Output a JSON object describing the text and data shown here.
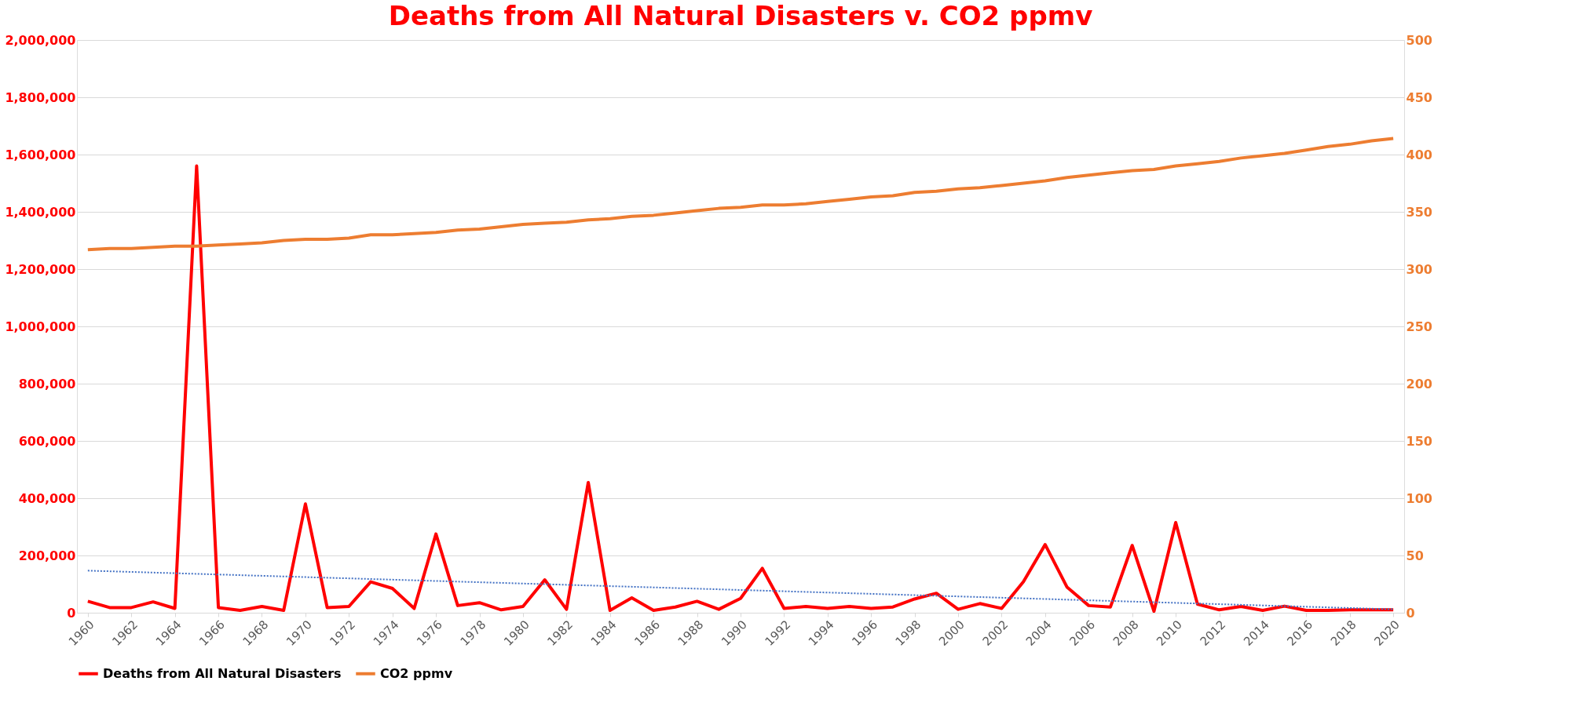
{
  "chart_data": {
    "type": "line",
    "title": "Deaths from All Natural Disasters v. CO2 ppmv",
    "x": [
      1960,
      1961,
      1962,
      1963,
      1964,
      1965,
      1966,
      1967,
      1968,
      1969,
      1970,
      1971,
      1972,
      1973,
      1974,
      1975,
      1976,
      1977,
      1978,
      1979,
      1980,
      1981,
      1982,
      1983,
      1984,
      1985,
      1986,
      1987,
      1988,
      1989,
      1990,
      1991,
      1992,
      1993,
      1994,
      1995,
      1996,
      1997,
      1998,
      1999,
      2000,
      2001,
      2002,
      2003,
      2004,
      2005,
      2006,
      2007,
      2008,
      2009,
      2010,
      2011,
      2012,
      2013,
      2014,
      2015,
      2016,
      2017,
      2018,
      2019,
      2020
    ],
    "series": [
      {
        "name": "Deaths from All Natural Disasters",
        "color": "#ff0000",
        "values": [
          40000,
          18000,
          18000,
          38000,
          15000,
          1560000,
          18000,
          8000,
          22000,
          8000,
          380000,
          18000,
          22000,
          108000,
          85000,
          15000,
          275000,
          25000,
          35000,
          10000,
          22000,
          115000,
          12000,
          455000,
          8000,
          52000,
          8000,
          20000,
          40000,
          12000,
          50000,
          155000,
          15000,
          22000,
          15000,
          22000,
          15000,
          20000,
          48000,
          68000,
          12000,
          32000,
          15000,
          108000,
          238000,
          90000,
          25000,
          20000,
          235000,
          5000,
          315000,
          30000,
          10000,
          22000,
          8000,
          23000,
          8000,
          8000,
          10000,
          10000,
          10000
        ]
      },
      {
        "name": "CO2 ppmv",
        "color": "#ed7d31",
        "axis": "y2",
        "values": [
          317,
          318,
          318,
          319,
          320,
          320,
          321,
          322,
          323,
          325,
          326,
          326,
          327,
          330,
          330,
          331,
          332,
          334,
          335,
          337,
          339,
          340,
          341,
          343,
          344,
          346,
          347,
          349,
          351,
          353,
          354,
          356,
          356,
          357,
          359,
          361,
          363,
          364,
          367,
          368,
          370,
          371,
          373,
          375,
          377,
          380,
          382,
          384,
          386,
          387,
          390,
          392,
          394,
          397,
          399,
          401,
          404,
          407,
          409,
          412,
          414
        ]
      },
      {
        "type": "line",
        "color": "#4472c4",
        "line_style": "dotted",
        "x": [
          1960,
          2020
        ],
        "values": [
          147000,
          12000
        ]
      }
    ],
    "xlim": [
      1959.5,
      2020.5
    ],
    "xticks": [
      1960,
      1962,
      1964,
      1966,
      1968,
      1970,
      1972,
      1974,
      1976,
      1978,
      1980,
      1982,
      1984,
      1986,
      1988,
      1990,
      1992,
      1994,
      1996,
      1998,
      2000,
      2002,
      2004,
      2006,
      2008,
      2010,
      2012,
      2014,
      2016,
      2018,
      2020
    ],
    "ylim": [
      0,
      2000000
    ],
    "yticks": [
      0,
      {
        "value": 200000,
        "label": "200,000"
      },
      {
        "value": 400000,
        "label": "400,000"
      },
      {
        "value": 600000,
        "label": "600,000"
      },
      {
        "value": 800000,
        "label": "800,000"
      },
      {
        "value": 1000000,
        "label": "1,000,000"
      },
      {
        "value": 1200000,
        "label": "1,200,000"
      },
      {
        "value": 1400000,
        "label": "1,400,000"
      },
      {
        "value": 1600000,
        "label": "1,600,000"
      },
      {
        "value": 1800000,
        "label": "1,800,000"
      },
      {
        "value": 2000000,
        "label": "2,000,000"
      }
    ],
    "y2lim": [
      0,
      500
    ],
    "y2ticks": [
      0,
      50,
      100,
      150,
      200,
      250,
      300,
      350,
      400,
      450,
      500
    ],
    "grid": "y",
    "legend": "bottom",
    "line_style": "solid",
    "marker": "none"
  }
}
